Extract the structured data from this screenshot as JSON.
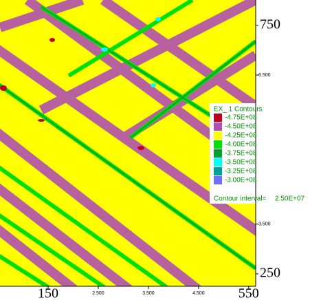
{
  "chart_data": {
    "type": "contour",
    "legend_title": "EX_ 1 Contours",
    "levels": [
      {
        "value": -475000000,
        "label": "-4.75E+08",
        "color": "#c00020"
      },
      {
        "value": -450000000,
        "label": "-4.50E+08",
        "color": "#b050b0"
      },
      {
        "value": -425000000,
        "label": "-4.25E+08",
        "color": "#ffff00"
      },
      {
        "value": -400000000,
        "label": "-4.00E+08",
        "color": "#00e000"
      },
      {
        "value": -375000000,
        "label": "-3.75E+08",
        "color": "#00a030"
      },
      {
        "value": -350000000,
        "label": "-3.50E+08",
        "color": "#00ffff"
      },
      {
        "value": -325000000,
        "label": "-3.25E+08",
        "color": "#00a0a0"
      },
      {
        "value": -300000000,
        "label": "-3.00E+08",
        "color": "#7070ff"
      }
    ],
    "interval_text": "Contour interval=",
    "interval": {
      "value": 25000000,
      "label": "2.50E+07"
    },
    "xlim": [
      54,
      564
    ],
    "xticks": [
      150,
      {
        "value": 250,
        "label": "2.500"
      },
      {
        "value": 350,
        "label": "3.500"
      },
      {
        "value": 450,
        "label": "4.500"
      },
      550
    ],
    "ylim": [
      225,
      801
    ],
    "yticks": [
      250,
      {
        "value": 350,
        "label": "3.500"
      },
      {
        "value": 650,
        "label": "6.500"
      },
      750
    ]
  }
}
